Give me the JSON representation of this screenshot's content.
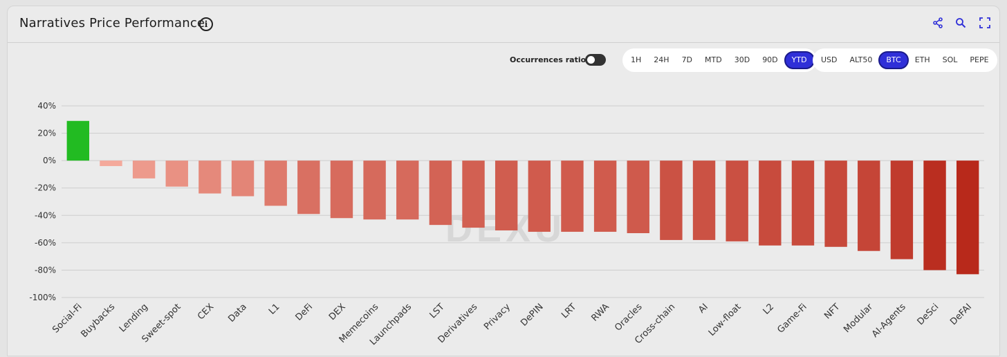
{
  "header": {
    "title": "Narratives Price Performance",
    "info_icon": "info-icon",
    "icons": [
      "share-icon",
      "zoom-icon",
      "fullscreen-icon"
    ],
    "accent_color": "#2f2fd8"
  },
  "controls": {
    "occurrences_label": "Occurrences ratio",
    "occurrences_on": false,
    "timeframes": [
      "1H",
      "24H",
      "7D",
      "MTD",
      "30D",
      "90D",
      "YTD"
    ],
    "timeframe_selected": "YTD",
    "bases": [
      "USD",
      "ALT50",
      "BTC",
      "ETH",
      "SOL",
      "PEPE"
    ],
    "base_selected": "BTC"
  },
  "chart_data": {
    "type": "bar",
    "categories": [
      "Social-Fi",
      "Buybacks",
      "Lending",
      "Sweet-spot",
      "CEX",
      "Data",
      "L1",
      "DeFi",
      "DEX",
      "Memecoins",
      "Launchpads",
      "LST",
      "Derivatives",
      "Privacy",
      "DePIN",
      "LRT",
      "RWA",
      "Oracles",
      "Cross-chain",
      "AI",
      "Low-float",
      "L2",
      "Game-Fi",
      "NFT",
      "Modular",
      "AI-Agents",
      "DeSci",
      "DeFAI"
    ],
    "values": [
      29,
      -4,
      -13,
      -19,
      -24,
      -26,
      -33,
      -39,
      -42,
      -43,
      -43,
      -47,
      -49,
      -51,
      -52,
      -52,
      -52,
      -53,
      -58,
      -58,
      -59,
      -62,
      -62,
      -63,
      -66,
      -72,
      -80,
      -83
    ],
    "ylim": [
      -100,
      40
    ],
    "yticks": [
      40,
      20,
      0,
      -20,
      -40,
      -60,
      -80,
      -100
    ],
    "ytick_labels": [
      "40%",
      "20%",
      "0%",
      "-20%",
      "-40%",
      "-60%",
      "-80%",
      "-100%"
    ],
    "grid": true,
    "positive_color": "#22bb22",
    "negative_color_light": "#f4a99b",
    "negative_color_dark": "#b8291b",
    "watermark": "DEXU"
  }
}
